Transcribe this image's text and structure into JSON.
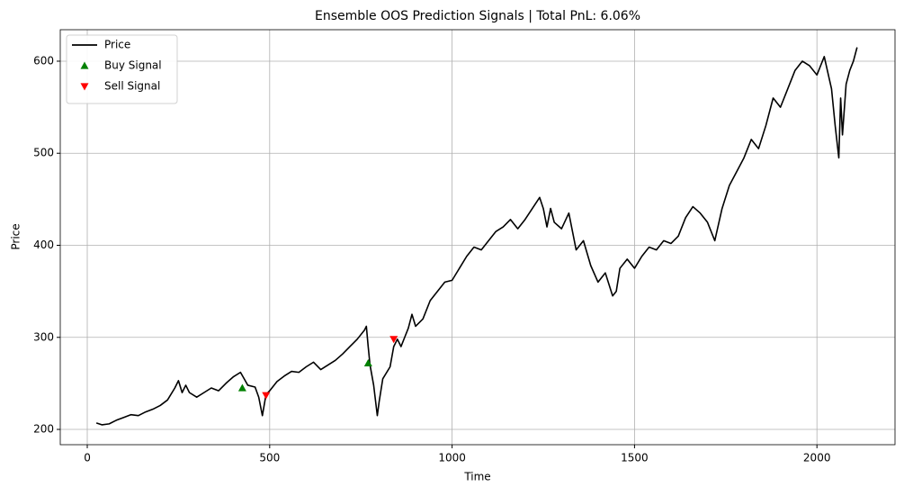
{
  "chart_data": {
    "type": "line",
    "title": "Ensemble OOS Prediction Signals | Total PnL: 6.06%",
    "xlabel": "Time",
    "ylabel": "Price",
    "xlim": [
      -74,
      2214
    ],
    "ylim": [
      183.4,
      634.2
    ],
    "xticks": [
      0,
      500,
      1000,
      1500,
      2000
    ],
    "yticks": [
      200,
      300,
      400,
      500,
      600
    ],
    "grid": true,
    "legend": "upper left",
    "series": [
      {
        "name": "Price",
        "color": "#000000",
        "marker": "line",
        "x": [
          25,
          40,
          60,
          80,
          100,
          120,
          140,
          160,
          180,
          200,
          220,
          240,
          250,
          260,
          270,
          280,
          300,
          320,
          340,
          360,
          380,
          400,
          420,
          430,
          440,
          460,
          470,
          480,
          490,
          500,
          520,
          540,
          560,
          580,
          600,
          620,
          640,
          660,
          680,
          700,
          720,
          740,
          760,
          765,
          770,
          775,
          785,
          795,
          800,
          810,
          830,
          840,
          850,
          860,
          870,
          880,
          890,
          900,
          920,
          940,
          960,
          980,
          1000,
          1020,
          1040,
          1060,
          1080,
          1100,
          1120,
          1140,
          1160,
          1180,
          1200,
          1220,
          1240,
          1250,
          1260,
          1270,
          1280,
          1300,
          1320,
          1340,
          1360,
          1380,
          1400,
          1420,
          1440,
          1450,
          1460,
          1480,
          1500,
          1520,
          1540,
          1560,
          1580,
          1600,
          1620,
          1640,
          1660,
          1680,
          1700,
          1720,
          1740,
          1760,
          1780,
          1800,
          1820,
          1840,
          1860,
          1880,
          1900,
          1920,
          1940,
          1960,
          1980,
          2000,
          2020,
          2040,
          2050,
          2060,
          2065,
          2070,
          2080,
          2090,
          2100,
          2110
        ],
        "values": [
          207,
          205,
          206,
          210,
          213,
          216,
          215,
          219,
          222,
          226,
          232,
          245,
          253,
          240,
          248,
          240,
          235,
          240,
          245,
          242,
          250,
          257,
          262,
          255,
          248,
          246,
          235,
          215,
          238,
          242,
          252,
          258,
          263,
          262,
          268,
          273,
          265,
          270,
          275,
          282,
          290,
          298,
          308,
          312,
          290,
          270,
          248,
          215,
          230,
          255,
          268,
          290,
          298,
          290,
          300,
          310,
          325,
          312,
          320,
          340,
          350,
          360,
          362,
          375,
          388,
          398,
          395,
          405,
          415,
          420,
          428,
          418,
          428,
          440,
          452,
          440,
          420,
          440,
          425,
          418,
          435,
          395,
          405,
          378,
          360,
          370,
          345,
          350,
          375,
          385,
          375,
          388,
          398,
          395,
          405,
          402,
          410,
          430,
          442,
          435,
          425,
          405,
          440,
          465,
          480,
          495,
          515,
          505,
          530,
          560,
          550,
          570,
          590,
          600,
          595,
          585,
          605,
          570,
          530,
          495,
          560,
          520,
          575,
          590,
          600,
          615
        ]
      },
      {
        "name": "Buy Signal",
        "color": "#008000",
        "marker": "up",
        "x": [
          425,
          770
        ],
        "values": [
          245,
          272
        ]
      },
      {
        "name": "Sell Signal",
        "color": "#ff0000",
        "marker": "down",
        "x": [
          490,
          840
        ],
        "values": [
          237,
          298
        ]
      }
    ]
  }
}
